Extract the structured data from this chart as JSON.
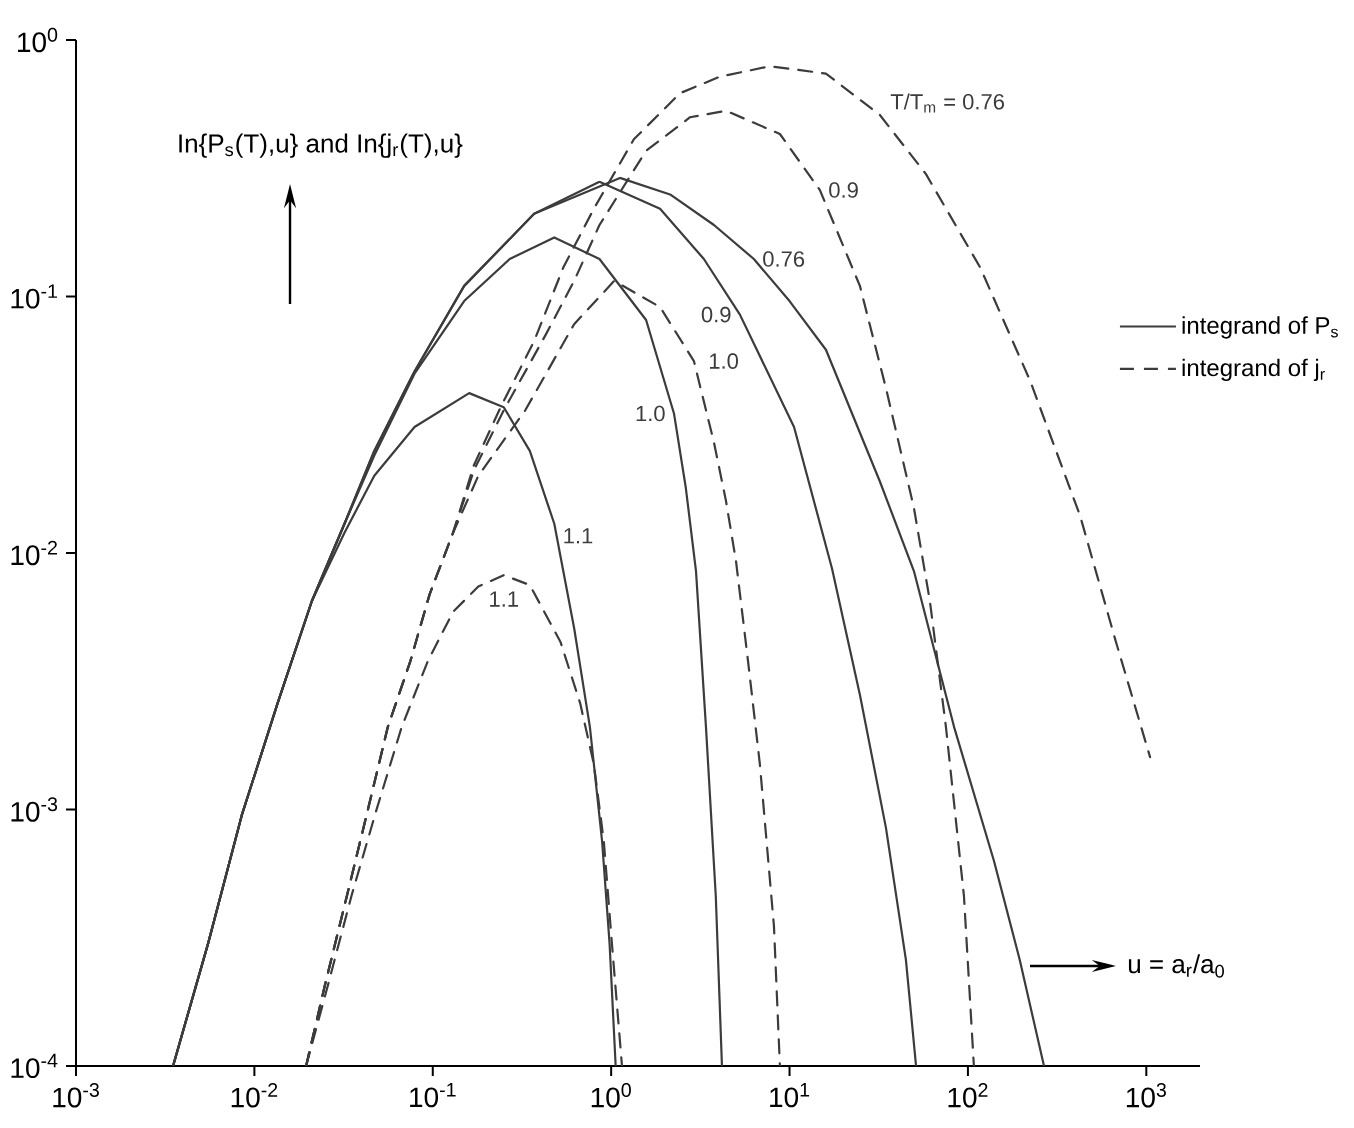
{
  "chart_data": {
    "type": "line",
    "xlabel": "u = a$_{r}$/a$_{0}$",
    "ylabel": "In{P$_{s}$(T),u} and In{j$_{r}$(T),u}",
    "log": "xy",
    "legend": "right",
    "xlim": [
      0.001,
      2000
    ],
    "ylim": [
      0.0001,
      1
    ],
    "xticks": [
      {
        "value": 0.001,
        "label": "10$^{-3}$"
      },
      {
        "value": 0.01,
        "label": "10$^{-2}$"
      },
      {
        "value": 0.1,
        "label": "10$^{-1}$"
      },
      {
        "value": 1,
        "label": "10$^{0}$"
      },
      {
        "value": 10,
        "label": "10$^{1}$"
      },
      {
        "value": 100,
        "label": "10$^{2}$"
      },
      {
        "value": 1000,
        "label": "10$^{3}$"
      }
    ],
    "yticks": [
      {
        "value": 0.0001,
        "label": "10$^{-4}$"
      },
      {
        "value": 0.001,
        "label": "10$^{-3}$"
      },
      {
        "value": 0.01,
        "label": "10$^{-2}$"
      },
      {
        "value": 0.1,
        "label": "10$^{-1}$"
      },
      {
        "value": 1,
        "label": "10$^{0}$"
      }
    ],
    "annotations": [
      "integrand of P$_{s}$",
      "integrand of j$_{r}$"
    ],
    "series": [
      {
        "name": "1.1",
        "color": "#3c3c3c",
        "line_style": "solid",
        "x": [
          0.0035,
          0.0055,
          0.0085,
          0.0135,
          0.021,
          0.032,
          0.047,
          0.079,
          0.16,
          0.25,
          0.35,
          0.48,
          0.62,
          0.76,
          0.89,
          0.98,
          1.06
        ],
        "values": [
          0.0001,
          0.0003,
          0.00095,
          0.0026,
          0.0065,
          0.012,
          0.02,
          0.031,
          0.042,
          0.037,
          0.025,
          0.013,
          0.0051,
          0.0021,
          0.00075,
          0.0003,
          0.0001
        ]
      },
      {
        "name": "1.0",
        "color": "#3c3c3c",
        "line_style": "solid",
        "x": [
          0.0035,
          0.0055,
          0.0085,
          0.0135,
          0.021,
          0.032,
          0.047,
          0.079,
          0.15,
          0.27,
          0.48,
          0.86,
          1.57,
          2.25,
          2.62,
          2.99,
          3.4,
          3.86,
          4.18
        ],
        "values": [
          0.0001,
          0.0003,
          0.00095,
          0.0026,
          0.0065,
          0.013,
          0.024,
          0.05,
          0.096,
          0.14,
          0.17,
          0.14,
          0.081,
          0.035,
          0.018,
          0.0085,
          0.0021,
          0.00046,
          0.0001
        ]
      },
      {
        "name": "0.9",
        "color": "#3c3c3c",
        "line_style": "solid",
        "x": [
          0.0035,
          0.0055,
          0.0085,
          0.0135,
          0.021,
          0.032,
          0.047,
          0.079,
          0.15,
          0.37,
          0.86,
          1.88,
          3.31,
          5.27,
          10.6,
          17.3,
          24.8,
          34.7,
          44.9,
          51.2
        ],
        "values": [
          0.0001,
          0.0003,
          0.00095,
          0.0026,
          0.0065,
          0.013,
          0.025,
          0.051,
          0.11,
          0.21,
          0.28,
          0.22,
          0.14,
          0.085,
          0.031,
          0.0087,
          0.0028,
          0.00085,
          0.00026,
          0.0001
        ]
      },
      {
        "name": "0.76",
        "color": "#3c3c3c",
        "line_style": "solid",
        "x": [
          0.0035,
          0.0055,
          0.0085,
          0.0135,
          0.021,
          0.032,
          0.047,
          0.079,
          0.15,
          0.37,
          1.12,
          2.14,
          3.77,
          6.31,
          10.0,
          16.0,
          32.1,
          49.8,
          83.6,
          140,
          195,
          267
        ],
        "values": [
          0.0001,
          0.0003,
          0.00095,
          0.0026,
          0.0065,
          0.013,
          0.025,
          0.051,
          0.11,
          0.21,
          0.29,
          0.25,
          0.19,
          0.14,
          0.096,
          0.062,
          0.019,
          0.0085,
          0.0021,
          0.00063,
          0.00026,
          0.0001
        ]
      },
      {
        "name": "1.1",
        "color": "#3c3c3c",
        "line_style": "dashed",
        "x": [
          0.0195,
          0.026,
          0.035,
          0.048,
          0.067,
          0.094,
          0.13,
          0.18,
          0.25,
          0.35,
          0.52,
          0.67,
          0.8,
          0.91,
          1.01,
          1.15
        ],
        "values": [
          0.0001,
          0.00021,
          0.00046,
          0.00098,
          0.0021,
          0.0038,
          0.0059,
          0.0074,
          0.0082,
          0.0075,
          0.0045,
          0.0026,
          0.0015,
          0.00075,
          0.0003,
          0.0001
        ]
      },
      {
        "name": "1.0",
        "color": "#3c3c3c",
        "line_style": "dashed",
        "x": [
          0.0195,
          0.025,
          0.033,
          0.043,
          0.056,
          0.075,
          0.096,
          0.13,
          0.18,
          0.33,
          0.62,
          1.04,
          1.88,
          2.91,
          3.77,
          4.4,
          5.01,
          5.85,
          6.82,
          8.18,
          8.83
        ],
        "values": [
          0.0001,
          0.00021,
          0.00046,
          0.00098,
          0.0021,
          0.0038,
          0.0069,
          0.012,
          0.02,
          0.036,
          0.078,
          0.115,
          0.091,
          0.056,
          0.027,
          0.016,
          0.0093,
          0.0038,
          0.0015,
          0.00035,
          0.0001
        ]
      },
      {
        "name": "0.9",
        "color": "#3c3c3c",
        "line_style": "dashed",
        "x": [
          0.0195,
          0.025,
          0.033,
          0.043,
          0.056,
          0.075,
          0.096,
          0.13,
          0.17,
          0.25,
          0.43,
          0.62,
          0.86,
          1.57,
          2.77,
          4.4,
          8.83,
          14.8,
          24.8,
          34.7,
          49.8,
          61.2,
          75.3,
          95.0,
          108
        ],
        "values": [
          0.0001,
          0.00021,
          0.00046,
          0.00098,
          0.0021,
          0.0038,
          0.0069,
          0.012,
          0.021,
          0.036,
          0.071,
          0.115,
          0.19,
          0.37,
          0.5,
          0.53,
          0.43,
          0.26,
          0.11,
          0.044,
          0.015,
          0.0065,
          0.0021,
          0.00046,
          0.0001
        ]
      },
      {
        "name": "T/T$_{m}$ = 0.76",
        "color": "#3c3c3c",
        "line_style": "dashed",
        "x": [
          0.0195,
          0.025,
          0.033,
          0.043,
          0.056,
          0.075,
          0.096,
          0.13,
          0.17,
          0.24,
          0.37,
          0.54,
          0.8,
          1.34,
          2.43,
          4.07,
          7.76,
          16.0,
          32.1,
          58.2,
          117,
          223,
          425,
          676,
          1050
        ],
        "values": [
          0.0001,
          0.00021,
          0.00046,
          0.00098,
          0.0021,
          0.0038,
          0.0069,
          0.012,
          0.022,
          0.037,
          0.067,
          0.13,
          0.22,
          0.41,
          0.62,
          0.72,
          0.79,
          0.74,
          0.51,
          0.3,
          0.13,
          0.047,
          0.014,
          0.0045,
          0.0016
        ]
      }
    ]
  }
}
